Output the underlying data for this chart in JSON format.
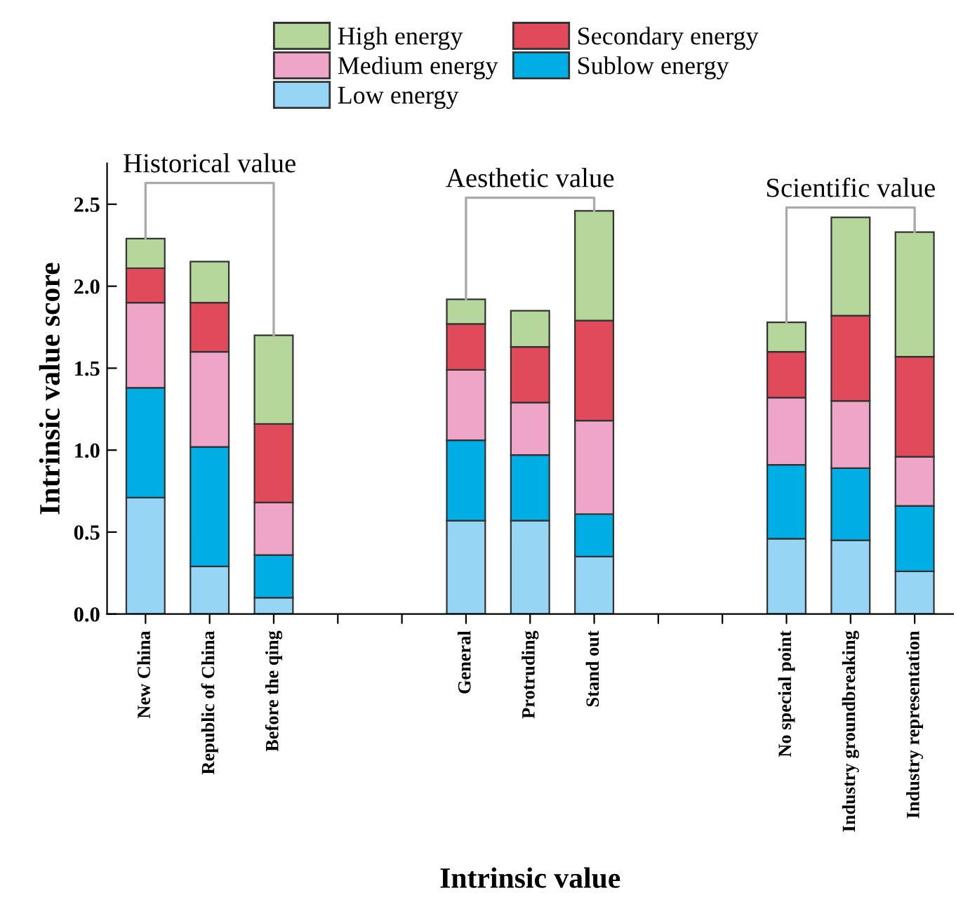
{
  "chart_data": {
    "type": "bar",
    "stacked": true,
    "xlabel": "Intrinsic value",
    "ylabel": "Intrinsic value score",
    "categories": [
      "New China",
      "Republic of China",
      "Before the qing",
      null,
      null,
      "General",
      "Protruding",
      "Stand out",
      null,
      null,
      "No special point",
      "Industry groundbreaking",
      "Industry representation"
    ],
    "series": [
      {
        "name": "Low energy",
        "color": "#97d5f5",
        "values": [
          0.71,
          0.29,
          0.1,
          null,
          null,
          0.57,
          0.57,
          0.35,
          null,
          null,
          0.46,
          0.45,
          0.26
        ]
      },
      {
        "name": "Sublow energy",
        "color": "#00aee6",
        "values": [
          0.67,
          0.73,
          0.26,
          null,
          null,
          0.49,
          0.4,
          0.26,
          null,
          null,
          0.45,
          0.44,
          0.4
        ]
      },
      {
        "name": "Medium energy",
        "color": "#eea5c7",
        "values": [
          0.52,
          0.58,
          0.32,
          null,
          null,
          0.43,
          0.32,
          0.57,
          null,
          null,
          0.41,
          0.41,
          0.3
        ]
      },
      {
        "name": "Secondary energy",
        "color": "#e04a5a",
        "values": [
          0.21,
          0.3,
          0.48,
          null,
          null,
          0.28,
          0.34,
          0.61,
          null,
          null,
          0.28,
          0.52,
          0.61
        ]
      },
      {
        "name": "High energy",
        "color": "#b5d79c",
        "values": [
          0.18,
          0.25,
          0.54,
          null,
          null,
          0.15,
          0.22,
          0.67,
          null,
          null,
          0.18,
          0.6,
          0.76
        ]
      }
    ],
    "ylim": [
      0,
      2.75
    ],
    "yticks": [
      {
        "value": 0,
        "label": "0.0"
      },
      {
        "value": 0.5,
        "label": "0.5"
      },
      {
        "value": 1,
        "label": "1.0"
      },
      {
        "value": 1.5,
        "label": "1.5"
      },
      {
        "value": 2,
        "label": "2.0"
      },
      {
        "value": 2.5,
        "label": "2.5"
      }
    ],
    "annotations": [
      {
        "text": "Historical value",
        "x": "New China",
        "y": 2.29
      },
      {
        "text": "Aesthetic value",
        "x": "Stand out",
        "y": 2.46
      },
      {
        "text": "Scientific value",
        "x": "Industry representation",
        "y": 2.33
      }
    ],
    "legend": "top",
    "grid": false
  }
}
